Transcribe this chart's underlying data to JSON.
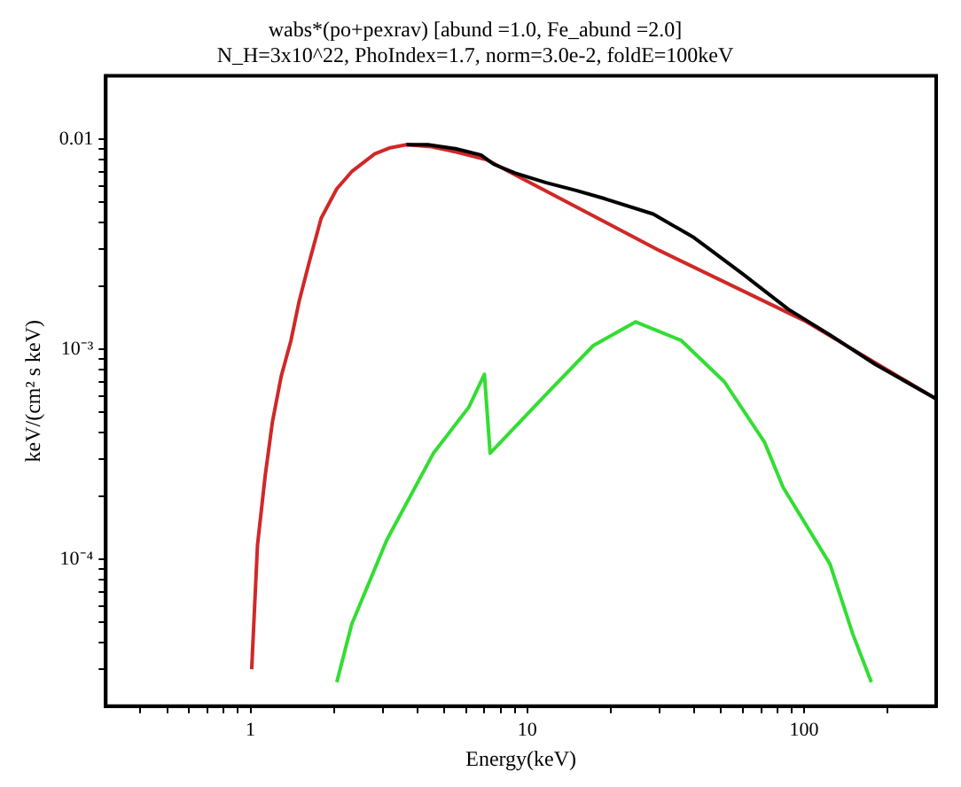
{
  "chart_data": {
    "type": "line",
    "title": "wabs*(po+pexrav) [abund =1.0, Fe_abund =2.0]",
    "subtitle": "N_H=3x10^22, PhoIndex=1.7, norm=3.0e-2, foldE=100keV",
    "xlabel": "Energy(keV)",
    "ylabel": "keV/(cm² s keV)",
    "log": "xy",
    "grid": false,
    "legend": false,
    "marker": "none",
    "line_style": "solid",
    "xlim": [
      0.3,
      300
    ],
    "ylim": [
      2e-05,
      0.02
    ],
    "xticks": [
      {
        "value": 0.4,
        "label": null
      },
      {
        "value": 0.5,
        "label": null
      },
      {
        "value": 0.6,
        "label": null
      },
      {
        "value": 0.7,
        "label": null
      },
      {
        "value": 0.8,
        "label": null
      },
      {
        "value": 0.9,
        "label": null
      },
      1,
      {
        "value": 2,
        "label": null
      },
      {
        "value": 3,
        "label": null
      },
      {
        "value": 4,
        "label": null
      },
      {
        "value": 5,
        "label": null
      },
      {
        "value": 6,
        "label": null
      },
      {
        "value": 7,
        "label": null
      },
      {
        "value": 8,
        "label": null
      },
      {
        "value": 9,
        "label": null
      },
      10,
      {
        "value": 20,
        "label": null
      },
      {
        "value": 30,
        "label": null
      },
      {
        "value": 40,
        "label": null
      },
      {
        "value": 50,
        "label": null
      },
      {
        "value": 60,
        "label": null
      },
      {
        "value": 70,
        "label": null
      },
      {
        "value": 80,
        "label": null
      },
      {
        "value": 90,
        "label": null
      },
      100,
      {
        "value": 200,
        "label": null
      }
    ],
    "yticks": [
      {
        "value": 3e-05,
        "label": null
      },
      {
        "value": 4e-05,
        "label": null
      },
      {
        "value": 5e-05,
        "label": null
      },
      {
        "value": 6e-05,
        "label": null
      },
      {
        "value": 7e-05,
        "label": null
      },
      {
        "value": 8e-05,
        "label": null
      },
      {
        "value": 9e-05,
        "label": null
      },
      {
        "value": 0.0001,
        "label": "10⁻⁴"
      },
      {
        "value": 0.0002,
        "label": null
      },
      {
        "value": 0.0003,
        "label": null
      },
      {
        "value": 0.0004,
        "label": null
      },
      {
        "value": 0.0005,
        "label": null
      },
      {
        "value": 0.0006,
        "label": null
      },
      {
        "value": 0.0007,
        "label": null
      },
      {
        "value": 0.0008,
        "label": null
      },
      {
        "value": 0.0009,
        "label": null
      },
      {
        "value": 0.001,
        "label": "10⁻³"
      },
      {
        "value": 0.002,
        "label": null
      },
      {
        "value": 0.003,
        "label": null
      },
      {
        "value": 0.004,
        "label": null
      },
      {
        "value": 0.005,
        "label": null
      },
      {
        "value": 0.006,
        "label": null
      },
      {
        "value": 0.007,
        "label": null
      },
      {
        "value": 0.008,
        "label": null
      },
      {
        "value": 0.009,
        "label": null
      },
      {
        "value": 0.01,
        "label": "0.01"
      }
    ],
    "series": [
      {
        "color": "#000000",
        "x": [
          3.66,
          4.37,
          5.5,
          6.8,
          7.56,
          9,
          11.7,
          15,
          19.1,
          28.5,
          40,
          59.6,
          87.6,
          124,
          180,
          300
        ],
        "values": [
          0.0094,
          0.0094,
          0.009,
          0.0084,
          0.0076,
          0.0069,
          0.0062,
          0.0057,
          0.0052,
          0.0044,
          0.0034,
          0.0023,
          0.00155,
          0.00117,
          0.00085,
          0.00058
        ]
      },
      {
        "color": "#d02828",
        "x": [
          1.01,
          1.06,
          1.13,
          1.2,
          1.29,
          1.4,
          1.5,
          1.63,
          1.8,
          2.05,
          2.32,
          2.81,
          3.2,
          3.66,
          4.5,
          5.5,
          7.1,
          10,
          30,
          100,
          300
        ],
        "values": [
          3e-05,
          0.000117,
          0.00025,
          0.00045,
          0.00074,
          0.0011,
          0.0017,
          0.0026,
          0.0042,
          0.0058,
          0.007,
          0.0085,
          0.0091,
          0.0094,
          0.0092,
          0.0087,
          0.008,
          0.0063,
          0.00295,
          0.00137,
          0.00058
        ]
      },
      {
        "color": "#33dd33",
        "x": [
          2.05,
          2.32,
          3.11,
          4.58,
          6.15,
          7,
          7.34,
          11.7,
          17.3,
          24.6,
          36,
          51.5,
          72,
          84,
          124,
          150,
          175
        ],
        "values": [
          2.6e-05,
          4.9e-05,
          0.000124,
          0.00032,
          0.00053,
          0.00076,
          0.00032,
          0.00061,
          0.00104,
          0.00135,
          0.0011,
          0.0007,
          0.00036,
          0.00022,
          9.5e-05,
          4.4e-05,
          2.6e-05
        ]
      }
    ]
  }
}
